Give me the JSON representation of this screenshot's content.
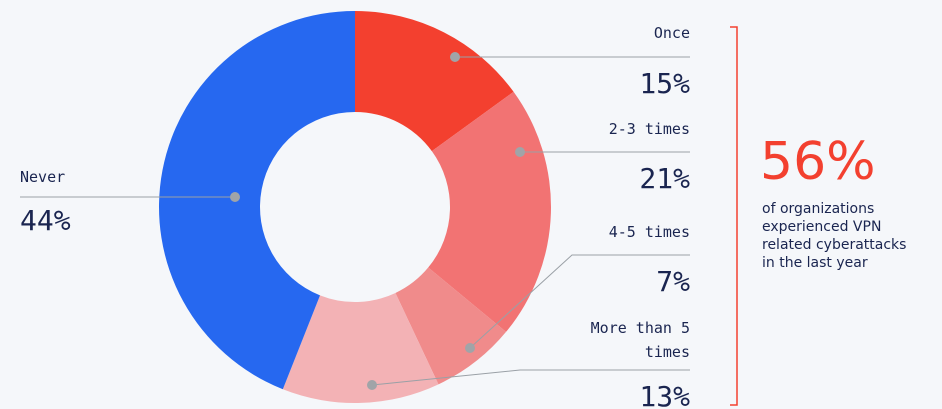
{
  "chart_data": {
    "type": "donut",
    "categories": [
      "Once",
      "2-3 times",
      "4-5 times",
      "More than 5 times",
      "Never"
    ],
    "values": [
      15,
      21,
      7,
      13,
      44
    ],
    "value_labels": [
      "15%",
      "21%",
      "7%",
      "13%",
      "44%"
    ],
    "colors": [
      "#f3402f",
      "#f27373",
      "#f08b8b",
      "#f3b2b5",
      "#2668f0"
    ],
    "annotation": {
      "value": "56%",
      "text": "of organizations experienced VPN related cyberattacks in the last year",
      "color": "#f3402f"
    }
  }
}
